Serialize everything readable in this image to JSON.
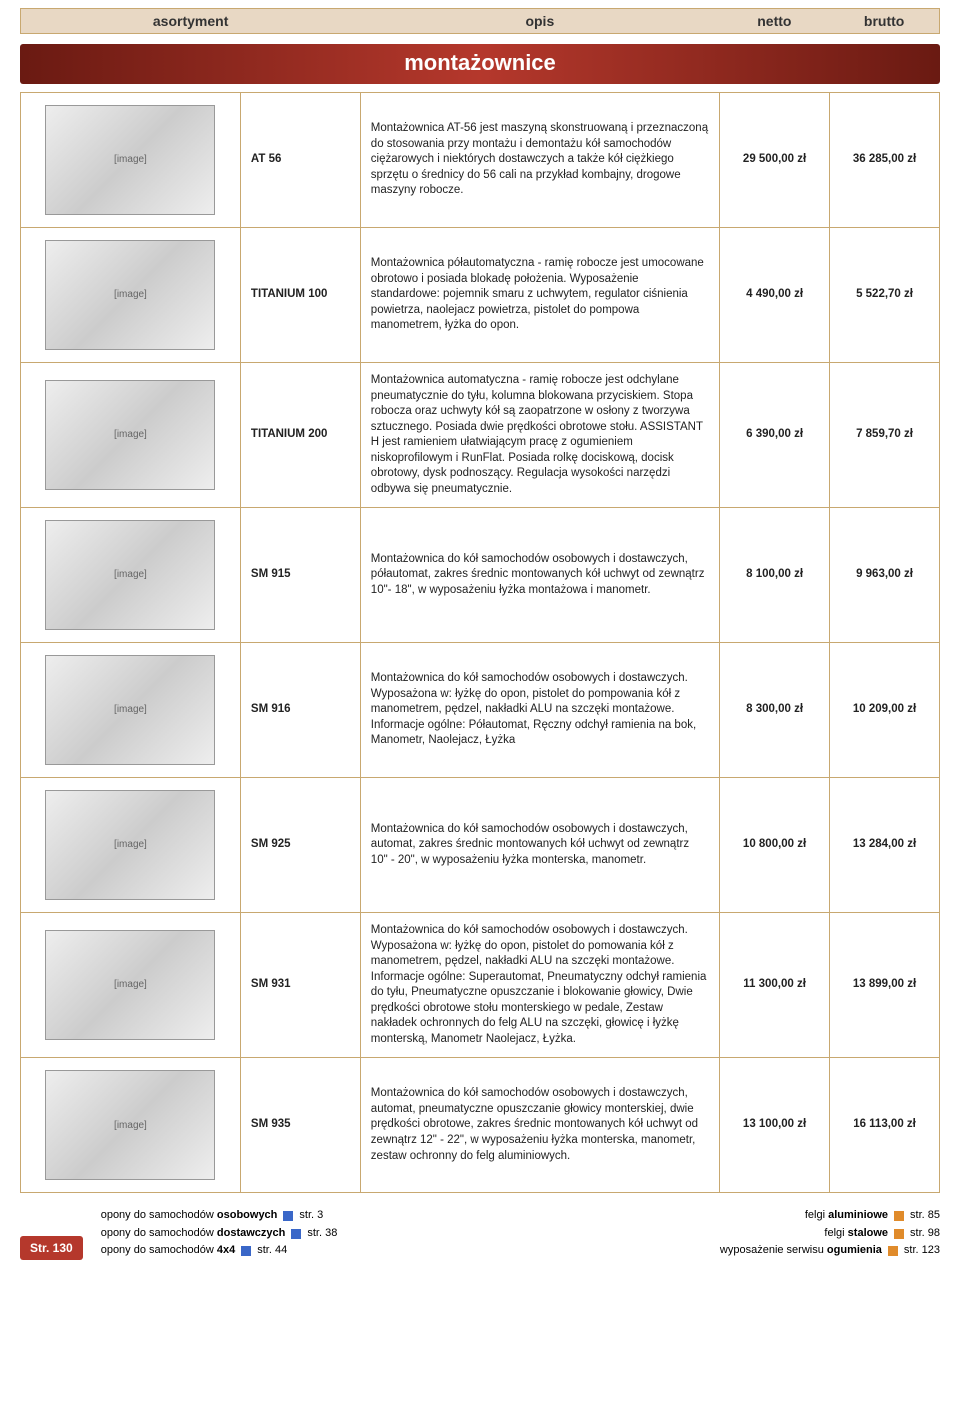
{
  "header": {
    "asortyment": "asortyment",
    "opis": "opis",
    "netto": "netto",
    "brutto": "brutto"
  },
  "section_title": "montażownice",
  "rows": [
    {
      "sku": "AT 56",
      "desc": "Montażownica AT-56 jest maszyną skonstruowaną i przeznaczoną do stosowania przy montażu i demontażu kół samochodów ciężarowych i niektórych dostawczych a także kół ciężkiego sprzętu o średnicy do 56 cali na przykład kombajny, drogowe maszyny robocze.",
      "netto": "29 500,00 zł",
      "brutto": "36 285,00 zł"
    },
    {
      "sku": "TITANIUM 100",
      "desc": "Montażownica półautomatyczna - ramię robocze jest umocowane obrotowo i posiada blokadę położenia. Wyposażenie standardowe: pojemnik smaru z uchwytem, regulator ciśnienia powietrza, naolejacz powietrza, pistolet do pompowa manometrem, łyżka do opon.",
      "netto": "4 490,00 zł",
      "brutto": "5 522,70 zł"
    },
    {
      "sku": "TITANIUM 200",
      "desc": "Montażownica automatyczna - ramię robocze jest odchylane pneumatycznie do tyłu, kolumna blokowana przyciskiem. Stopa robocza oraz uchwyty kół są zaopatrzone w osłony z tworzywa sztucznego. Posiada dwie prędkości obrotowe stołu. ASSISTANT H jest ramieniem ułatwiającym pracę z ogumieniem niskoprofilowym i RunFlat. Posiada rolkę dociskową, docisk obrotowy, dysk podnoszący. Regulacja wysokości narzędzi odbywa się pneumatycznie.",
      "netto": "6 390,00 zł",
      "brutto": "7 859,70 zł"
    },
    {
      "sku": "SM 915",
      "desc": "Montażownica do kół samochodów osobowych i dostawczych, półautomat, zakres średnic montowanych kół uchwyt od zewnątrz 10\"- 18\", w wyposażeniu łyżka montażowa i manometr.",
      "netto": "8 100,00 zł",
      "brutto": "9 963,00 zł"
    },
    {
      "sku": "SM 916",
      "desc": "Montażownica do kół samochodów osobowych i dostawczych. Wyposażona w: łyżkę do opon, pistolet do pompowania kół z manometrem, pędzel, nakładki ALU na szczęki montażowe. Informacje ogólne: Półautomat, Ręczny odchył ramienia na bok, Manometr, Naolejacz, Łyżka",
      "netto": "8 300,00 zł",
      "brutto": "10 209,00 zł"
    },
    {
      "sku": "SM 925",
      "desc": "Montażownica do kół samochodów osobowych i dostawczych, automat, zakres średnic montowanych kół uchwyt od zewnątrz 10\" - 20\", w wyposażeniu łyżka monterska, manometr.",
      "netto": "10 800,00 zł",
      "brutto": "13 284,00 zł"
    },
    {
      "sku": "SM 931",
      "desc": "Montażownica do kół samochodów osobowych i dostawczych. Wyposażona w: łyżkę do opon, pistolet do pomowania kół z manometrem, pędzel, nakładki ALU na szczęki montażowe. Informacje ogólne: Superautomat, Pneumatyczny odchył ramienia do tyłu, Pneumatyczne opuszczanie i blokowanie głowicy, Dwie prędkości obrotowe stołu monterskiego w pedale, Zestaw nakładek ochronnych do felg ALU na szczęki, głowicę i łyżkę monterską, Manometr Naolejacz, Łyżka.",
      "netto": "11 300,00 zł",
      "brutto": "13 899,00 zł"
    },
    {
      "sku": "SM 935",
      "desc": "Montażownica do kół samochodów osobowych i dostawczych, automat, pneumatyczne opuszczanie głowicy monterskiej, dwie prędkości obrotowe, zakres średnic montowanych kół uchwyt od zewnątrz 12\" - 22\", w wyposażeniu łyżka monterska, manometr, zestaw ochronny do felg aluminiowych.",
      "netto": "13 100,00 zł",
      "brutto": "16 113,00 zł"
    }
  ],
  "footer": {
    "page": "Str. 130",
    "left": [
      {
        "text": "opony do samochodów osobowych",
        "page": "str. 3"
      },
      {
        "text": "opony do samochodów dostawczych",
        "page": "str. 38"
      },
      {
        "text": "opony do samochodów 4x4",
        "page": "str. 44"
      }
    ],
    "right": [
      {
        "text": "felgi aluminiowe",
        "page": "str. 85"
      },
      {
        "text": "felgi stalowe",
        "page": "str. 98"
      },
      {
        "text": "wyposażenie serwisu ogumienia",
        "page": "str. 123"
      }
    ]
  },
  "colors": {
    "header_bg": "#e8d8c4",
    "border": "#c8a870",
    "accent": "#b5382c"
  }
}
